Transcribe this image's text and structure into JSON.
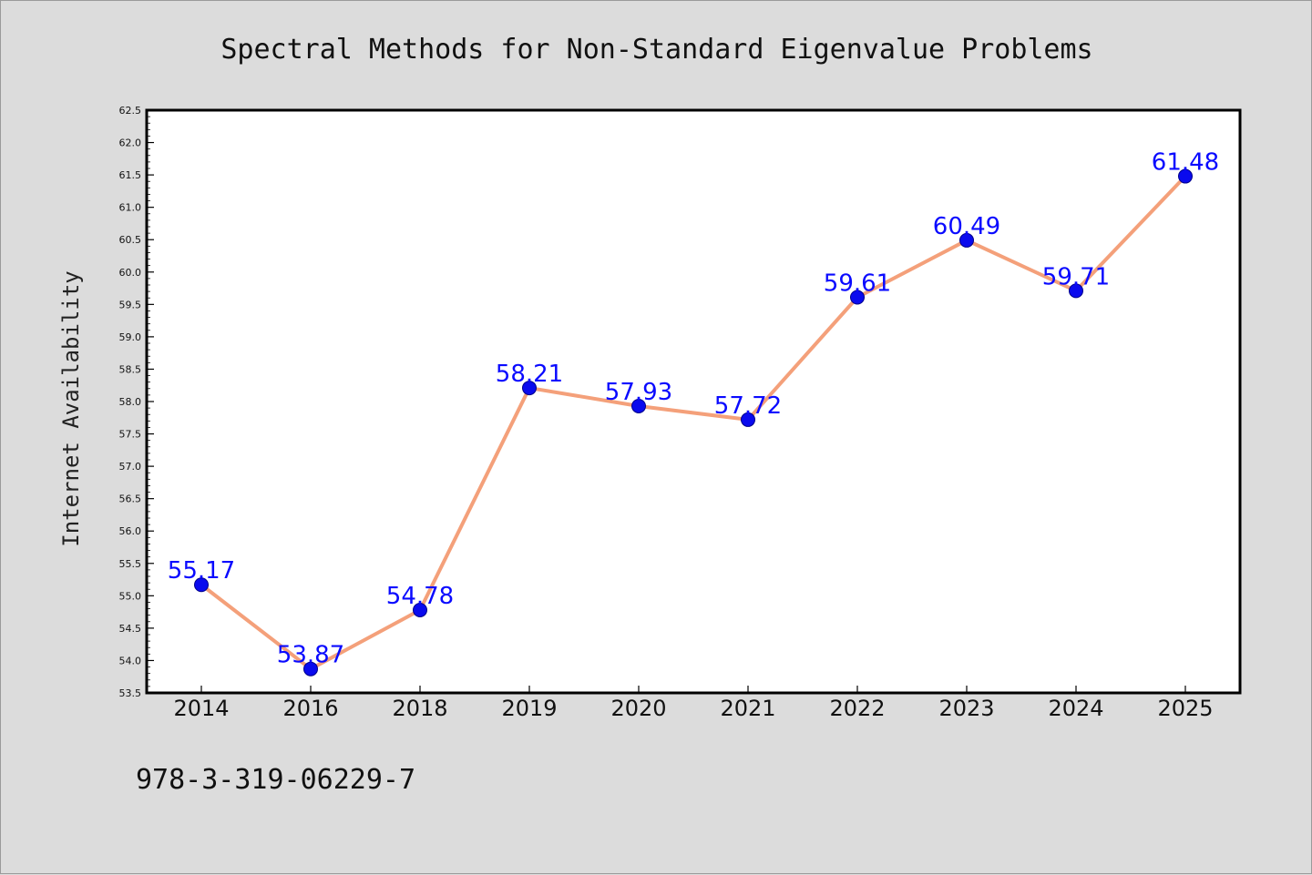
{
  "chart_data": {
    "type": "line",
    "title": "Spectral Methods for Non-Standard Eigenvalue Problems",
    "xlabel": "",
    "ylabel": "Internet Availability",
    "categories": [
      "2014",
      "2016",
      "2018",
      "2019",
      "2020",
      "2021",
      "2022",
      "2023",
      "2024",
      "2025"
    ],
    "values": [
      55.17,
      53.87,
      54.78,
      58.21,
      57.93,
      57.72,
      59.61,
      60.49,
      59.71,
      61.48
    ],
    "data_labels": [
      "55.17",
      "53.87",
      "54.78",
      "58.21",
      "57.93",
      "57.72",
      "59.61",
      "60.49",
      "59.71",
      "61.48"
    ],
    "ylim": [
      53.5,
      62.5
    ],
    "yticks": [
      "53.5",
      "54.0",
      "54.5",
      "55.0",
      "55.5",
      "56.0",
      "56.5",
      "57.0",
      "57.5",
      "58.0",
      "58.5",
      "59.0",
      "59.5",
      "60.0",
      "60.5",
      "61.0",
      "61.5",
      "62.0",
      "62.5"
    ],
    "grid": false,
    "line_color": "#f4a07a",
    "marker_color": "#0a0aee",
    "label_color": "#0a0aff"
  },
  "footer": {
    "isbn": "978-3-319-06229-7"
  }
}
